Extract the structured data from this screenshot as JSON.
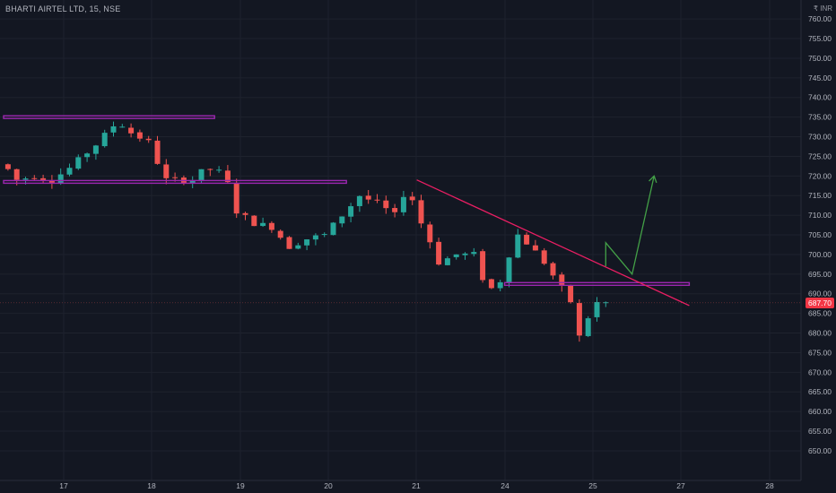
{
  "header": {
    "symbol": "BHARTI AIRTEL LTD, 15, NSE",
    "currency": "₹ INR"
  },
  "price_label": {
    "value": "687.70",
    "color": "#f23645"
  },
  "colors": {
    "background": "#131722",
    "up": "#26a69a",
    "down": "#ef5350",
    "support": "#9c27b0",
    "trendline": "#e91e63",
    "projection": "#43a047",
    "grid": "#1e222d",
    "axis_text": "#b2b5be"
  },
  "chart_data": {
    "type": "candlestick",
    "x_ticks": [
      "17",
      "18",
      "19",
      "20",
      "21",
      "24",
      "25",
      "27",
      "28"
    ],
    "y_ticks": [
      "650.00",
      "655.00",
      "660.00",
      "665.00",
      "670.00",
      "675.00",
      "680.00",
      "685.00",
      "690.00",
      "695.00",
      "700.00",
      "705.00",
      "710.00",
      "715.00",
      "720.00",
      "725.00",
      "730.00",
      "735.00",
      "740.00",
      "745.00",
      "750.00",
      "755.00",
      "760.00"
    ],
    "ylim": [
      647,
      763
    ],
    "candles": [],
    "key_prices": [
      {
        "x": 0.5,
        "p": 723
      },
      {
        "x": 2,
        "p": 719
      },
      {
        "x": 4,
        "p": 720
      },
      {
        "x": 6,
        "p": 719
      },
      {
        "x": 8,
        "p": 722
      },
      {
        "x": 11,
        "p": 728
      },
      {
        "x": 13.5,
        "p": 734
      },
      {
        "x": 15,
        "p": 731
      },
      {
        "x": 17.5,
        "p": 728
      },
      {
        "x": 18.5,
        "p": 719
      },
      {
        "x": 20,
        "p": 719
      },
      {
        "x": 22,
        "p": 719
      },
      {
        "x": 23.5,
        "p": 722
      },
      {
        "x": 25,
        "p": 721
      },
      {
        "x": 26,
        "p": 718
      },
      {
        "x": 27,
        "p": 711
      },
      {
        "x": 29,
        "p": 708
      },
      {
        "x": 31,
        "p": 707
      },
      {
        "x": 33,
        "p": 702
      },
      {
        "x": 35,
        "p": 704
      },
      {
        "x": 37,
        "p": 705
      },
      {
        "x": 39,
        "p": 710
      },
      {
        "x": 41,
        "p": 715
      },
      {
        "x": 43,
        "p": 713
      },
      {
        "x": 45,
        "p": 710
      },
      {
        "x": 46.5,
        "p": 718
      },
      {
        "x": 47.5,
        "p": 710
      },
      {
        "x": 48.5,
        "p": 706
      },
      {
        "x": 50,
        "p": 698
      },
      {
        "x": 52,
        "p": 700
      },
      {
        "x": 54,
        "p": 700
      },
      {
        "x": 55,
        "p": 694
      },
      {
        "x": 56.5,
        "p": 690
      },
      {
        "x": 58,
        "p": 700
      },
      {
        "x": 59,
        "p": 705
      },
      {
        "x": 60.5,
        "p": 702
      },
      {
        "x": 62,
        "p": 698
      },
      {
        "x": 63.5,
        "p": 693
      },
      {
        "x": 65,
        "p": 688
      },
      {
        "x": 66,
        "p": 679
      },
      {
        "x": 67,
        "p": 684
      },
      {
        "x": 68,
        "p": 687.7
      }
    ],
    "support_lines": [
      {
        "x1": 0,
        "x2": 24,
        "price": 735
      },
      {
        "x1": 0,
        "x2": 39,
        "price": 718.5
      },
      {
        "x1": 57,
        "x2": 78,
        "price": 692.5
      }
    ],
    "trendline": {
      "x1": 47,
      "p1": 719,
      "x2": 78,
      "p2": 687
    },
    "projection": [
      {
        "x": 68.5,
        "p": 697
      },
      {
        "x": 68.5,
        "p": 703
      },
      {
        "x": 71.5,
        "p": 695
      },
      {
        "x": 74,
        "p": 720
      }
    ],
    "last_price": 687.7
  }
}
